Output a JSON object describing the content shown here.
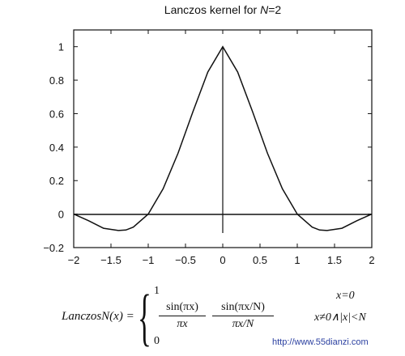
{
  "chart_data": {
    "type": "line",
    "title": "Lanczos kernel for N=2",
    "xlim": [
      -2,
      2
    ],
    "ylim": [
      -0.2,
      1.1
    ],
    "x_ticks": [
      "−2",
      "−1.5",
      "−1",
      "−0.5",
      "0",
      "0.5",
      "1",
      "1.5",
      "2"
    ],
    "x_tick_values": [
      -2,
      -1.5,
      -1,
      -0.5,
      0,
      0.5,
      1,
      1.5,
      2
    ],
    "y_ticks": [
      "−0.2",
      "0",
      "0.2",
      "0.4",
      "0.6",
      "0.8",
      "1"
    ],
    "y_tick_values": [
      -0.2,
      0,
      0.2,
      0.4,
      0.6,
      0.8,
      1
    ],
    "grid": false,
    "series": [
      {
        "x": [
          -2,
          -1.8,
          -1.6,
          -1.4,
          -1.3,
          -1.2,
          -1,
          -0.8,
          -0.6,
          -0.4,
          -0.2,
          0,
          0.2,
          0.4,
          0.6,
          0.8,
          1,
          1.2,
          1.3,
          1.4,
          1.6,
          1.8,
          2
        ],
        "y": [
          0,
          -0.0394,
          -0.0843,
          -0.0981,
          -0.0952,
          -0.0779,
          0,
          0.1514,
          0.3633,
          0.6119,
          0.8489,
          1,
          0.8489,
          0.6119,
          0.3633,
          0.1514,
          0,
          -0.0779,
          -0.0952,
          -0.0981,
          -0.0843,
          -0.0394,
          0
        ]
      }
    ]
  },
  "formula": {
    "lhs": "LanczosN(x) =",
    "case1_value": "1",
    "case1_condition": "x=0",
    "frac1_num": "sin(πx)",
    "frac1_den": "πx",
    "frac2_num": "sin(πx/N)",
    "frac2_den": "πx/N",
    "case2_condition": "x≠0∧|x|<N",
    "case3_value": "0"
  },
  "watermark": "http://www.55dianzi.com"
}
